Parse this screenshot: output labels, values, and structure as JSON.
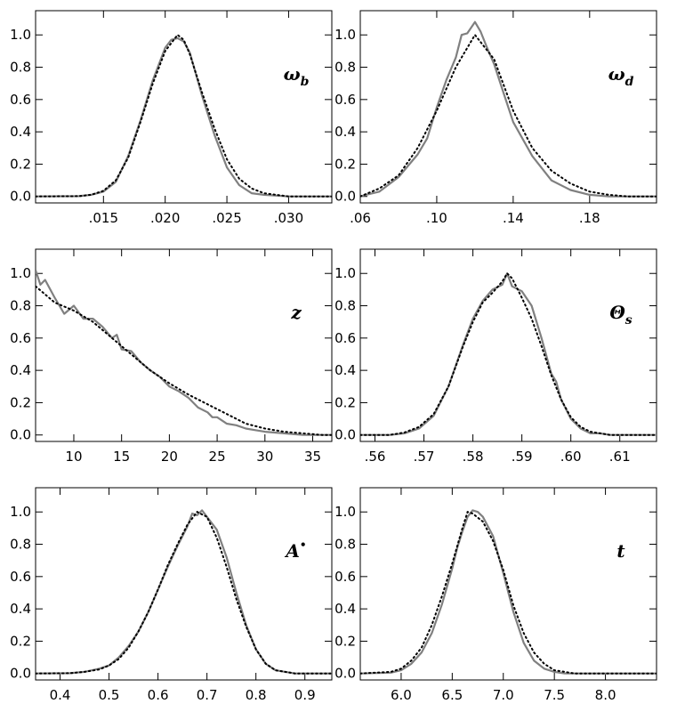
{
  "chart_data": [
    {
      "type": "line",
      "parameter_label": "ω",
      "parameter_subscript": "b",
      "xlim": [
        0.0095,
        0.0335
      ],
      "ylim": [
        -0.04,
        1.15
      ],
      "xticks": [
        0.015,
        0.02,
        0.025,
        0.03
      ],
      "xtick_labels": [
        ".015",
        ".020",
        ".025",
        ".030"
      ],
      "yticks": [
        0.0,
        0.2,
        0.4,
        0.6,
        0.8,
        1.0
      ],
      "ytick_labels": [
        "0.0",
        "0.2",
        "0.4",
        "0.6",
        "0.8",
        "1.0"
      ],
      "series": [
        {
          "style": "solid",
          "x": [
            0.0095,
            0.013,
            0.014,
            0.015,
            0.016,
            0.017,
            0.018,
            0.019,
            0.02,
            0.0205,
            0.021,
            0.0215,
            0.022,
            0.023,
            0.024,
            0.025,
            0.026,
            0.027,
            0.028,
            0.03,
            0.0335
          ],
          "y": [
            0,
            0.002,
            0.01,
            0.03,
            0.09,
            0.25,
            0.47,
            0.72,
            0.92,
            0.97,
            0.98,
            0.96,
            0.89,
            0.62,
            0.38,
            0.18,
            0.07,
            0.02,
            0.01,
            0,
            0
          ]
        },
        {
          "style": "dotted",
          "x": [
            0.0095,
            0.013,
            0.014,
            0.015,
            0.016,
            0.017,
            0.018,
            0.019,
            0.02,
            0.021,
            0.0215,
            0.022,
            0.023,
            0.024,
            0.025,
            0.026,
            0.027,
            0.028,
            0.029,
            0.03,
            0.0335
          ],
          "y": [
            0,
            0.002,
            0.01,
            0.035,
            0.1,
            0.24,
            0.46,
            0.7,
            0.9,
            1.0,
            0.97,
            0.88,
            0.64,
            0.42,
            0.23,
            0.11,
            0.05,
            0.02,
            0.01,
            0,
            0
          ]
        }
      ]
    },
    {
      "type": "line",
      "parameter_label": "ω",
      "parameter_subscript": "d",
      "xlim": [
        0.06,
        0.215
      ],
      "ylim": [
        -0.04,
        1.15
      ],
      "xticks": [
        0.06,
        0.1,
        0.14,
        0.18
      ],
      "xtick_labels": [
        ".06",
        ".10",
        ".14",
        ".18"
      ],
      "yticks": [
        0.0,
        0.2,
        0.4,
        0.6,
        0.8,
        1.0
      ],
      "ytick_labels": [
        "0.0",
        "0.2",
        "0.4",
        "0.6",
        "0.8",
        "1.0"
      ],
      "series": [
        {
          "style": "solid",
          "x": [
            0.06,
            0.063,
            0.07,
            0.08,
            0.09,
            0.095,
            0.1,
            0.105,
            0.11,
            0.113,
            0.116,
            0.12,
            0.123,
            0.126,
            0.13,
            0.135,
            0.14,
            0.15,
            0.16,
            0.17,
            0.18,
            0.19,
            0.2,
            0.215
          ],
          "y": [
            0,
            0.01,
            0.03,
            0.12,
            0.26,
            0.36,
            0.55,
            0.72,
            0.86,
            1.0,
            1.01,
            1.08,
            1.02,
            0.93,
            0.82,
            0.64,
            0.46,
            0.25,
            0.1,
            0.04,
            0.01,
            0,
            0,
            0
          ]
        },
        {
          "style": "dotted",
          "x": [
            0.06,
            0.07,
            0.08,
            0.09,
            0.1,
            0.11,
            0.12,
            0.13,
            0.14,
            0.15,
            0.16,
            0.17,
            0.18,
            0.19,
            0.2,
            0.215
          ],
          "y": [
            0,
            0.05,
            0.13,
            0.3,
            0.53,
            0.8,
            1.0,
            0.85,
            0.53,
            0.3,
            0.16,
            0.08,
            0.03,
            0.01,
            0,
            0
          ]
        }
      ]
    },
    {
      "type": "line",
      "parameter_label": "z",
      "parameter_subscript": "",
      "xlim": [
        6,
        37
      ],
      "ylim": [
        -0.04,
        1.15
      ],
      "xticks": [
        10,
        15,
        20,
        25,
        30,
        35
      ],
      "xtick_labels": [
        "10",
        "15",
        "20",
        "25",
        "30",
        "35"
      ],
      "yticks": [
        0.0,
        0.2,
        0.4,
        0.6,
        0.8,
        1.0
      ],
      "ytick_labels": [
        "0.0",
        "0.2",
        "0.4",
        "0.6",
        "0.8",
        "1.0"
      ],
      "series": [
        {
          "style": "solid",
          "x": [
            6,
            6.5,
            7,
            8,
            9,
            10,
            11,
            12,
            13,
            14,
            14.5,
            15,
            16,
            17,
            18,
            19,
            20,
            21,
            22,
            23,
            24,
            24.5,
            25,
            26,
            27,
            28,
            29,
            30,
            32,
            34,
            36,
            37
          ],
          "y": [
            1.02,
            0.93,
            0.96,
            0.85,
            0.75,
            0.8,
            0.72,
            0.72,
            0.67,
            0.6,
            0.62,
            0.53,
            0.52,
            0.45,
            0.4,
            0.36,
            0.3,
            0.27,
            0.23,
            0.17,
            0.14,
            0.11,
            0.11,
            0.07,
            0.06,
            0.04,
            0.03,
            0.02,
            0.01,
            0,
            0,
            0
          ]
        },
        {
          "style": "dotted",
          "x": [
            6,
            8,
            10,
            12,
            14,
            16,
            18,
            20,
            22,
            24,
            26,
            28,
            30,
            32,
            34,
            36,
            37
          ],
          "y": [
            0.92,
            0.82,
            0.77,
            0.7,
            0.6,
            0.5,
            0.4,
            0.32,
            0.25,
            0.19,
            0.13,
            0.07,
            0.04,
            0.02,
            0.01,
            0,
            0
          ]
        }
      ]
    },
    {
      "type": "line",
      "parameter_label": "Θ",
      "parameter_subscript": "s",
      "xlim": [
        0.557,
        0.6175
      ],
      "ylim": [
        -0.04,
        1.15
      ],
      "xticks": [
        0.56,
        0.57,
        0.58,
        0.59,
        0.6,
        0.61
      ],
      "xtick_labels": [
        ".56",
        ".57",
        ".58",
        ".59",
        ".60",
        ".61"
      ],
      "yticks": [
        0.0,
        0.2,
        0.4,
        0.6,
        0.8,
        1.0
      ],
      "ytick_labels": [
        "0.0",
        "0.2",
        "0.4",
        "0.6",
        "0.8",
        "1.0"
      ],
      "series": [
        {
          "style": "solid",
          "x": [
            0.557,
            0.563,
            0.566,
            0.569,
            0.572,
            0.575,
            0.578,
            0.58,
            0.582,
            0.584,
            0.586,
            0.587,
            0.588,
            0.59,
            0.592,
            0.594,
            0.596,
            0.597,
            0.598,
            0.6,
            0.602,
            0.604,
            0.606,
            0.608,
            0.61,
            0.6175
          ],
          "y": [
            0,
            0,
            0.01,
            0.04,
            0.12,
            0.3,
            0.56,
            0.72,
            0.83,
            0.9,
            0.93,
            1.0,
            0.92,
            0.89,
            0.8,
            0.6,
            0.38,
            0.33,
            0.22,
            0.1,
            0.04,
            0.01,
            0.01,
            0,
            0,
            0
          ]
        },
        {
          "style": "dotted",
          "x": [
            0.557,
            0.563,
            0.566,
            0.569,
            0.572,
            0.575,
            0.578,
            0.58,
            0.582,
            0.584,
            0.586,
            0.587,
            0.588,
            0.59,
            0.592,
            0.594,
            0.596,
            0.598,
            0.6,
            0.602,
            0.604,
            0.606,
            0.608,
            0.61,
            0.6175
          ],
          "y": [
            0,
            0,
            0.015,
            0.05,
            0.13,
            0.3,
            0.55,
            0.7,
            0.82,
            0.88,
            0.95,
            1.0,
            0.97,
            0.85,
            0.72,
            0.55,
            0.37,
            0.22,
            0.11,
            0.05,
            0.02,
            0.01,
            0,
            0,
            0
          ]
        }
      ]
    },
    {
      "type": "line",
      "parameter_label": "A",
      "parameter_subscript": "",
      "parameter_superscript": "•",
      "xlim": [
        0.35,
        0.955
      ],
      "ylim": [
        -0.04,
        1.15
      ],
      "xticks": [
        0.4,
        0.5,
        0.6,
        0.7,
        0.8,
        0.9
      ],
      "xtick_labels": [
        "0.4",
        "0.5",
        "0.6",
        "0.7",
        "0.8",
        "0.9"
      ],
      "yticks": [
        0.0,
        0.2,
        0.4,
        0.6,
        0.8,
        1.0
      ],
      "ytick_labels": [
        "0.0",
        "0.2",
        "0.4",
        "0.6",
        "0.8",
        "1.0"
      ],
      "series": [
        {
          "style": "solid",
          "x": [
            0.35,
            0.42,
            0.45,
            0.48,
            0.5,
            0.52,
            0.54,
            0.56,
            0.58,
            0.6,
            0.62,
            0.64,
            0.66,
            0.67,
            0.68,
            0.69,
            0.7,
            0.72,
            0.74,
            0.76,
            0.78,
            0.8,
            0.82,
            0.84,
            0.86,
            0.88,
            0.955
          ],
          "y": [
            0,
            0.002,
            0.01,
            0.03,
            0.05,
            0.1,
            0.17,
            0.26,
            0.38,
            0.52,
            0.66,
            0.79,
            0.91,
            0.99,
            0.98,
            1.01,
            0.97,
            0.89,
            0.72,
            0.5,
            0.3,
            0.15,
            0.06,
            0.02,
            0.01,
            0,
            0
          ]
        },
        {
          "style": "dotted",
          "x": [
            0.35,
            0.42,
            0.45,
            0.48,
            0.5,
            0.52,
            0.54,
            0.56,
            0.58,
            0.6,
            0.62,
            0.64,
            0.66,
            0.68,
            0.7,
            0.72,
            0.74,
            0.76,
            0.78,
            0.8,
            0.82,
            0.84,
            0.86,
            0.88,
            0.955
          ],
          "y": [
            0,
            0.002,
            0.01,
            0.025,
            0.05,
            0.09,
            0.16,
            0.26,
            0.38,
            0.52,
            0.67,
            0.8,
            0.92,
            1.0,
            0.97,
            0.84,
            0.66,
            0.46,
            0.29,
            0.15,
            0.06,
            0.02,
            0.01,
            0,
            0
          ]
        }
      ]
    },
    {
      "type": "line",
      "parameter_label": "t",
      "parameter_subscript": "",
      "xlim": [
        5.6,
        8.5
      ],
      "ylim": [
        -0.04,
        1.15
      ],
      "xticks": [
        6.0,
        6.5,
        7.0,
        7.5,
        8.0
      ],
      "xtick_labels": [
        "6.0",
        "6.5",
        "7.0",
        "7.5",
        "8.0"
      ],
      "yticks": [
        0.0,
        0.2,
        0.4,
        0.6,
        0.8,
        1.0
      ],
      "ytick_labels": [
        "0.0",
        "0.2",
        "0.4",
        "0.6",
        "0.8",
        "1.0"
      ],
      "series": [
        {
          "style": "solid",
          "x": [
            5.6,
            5.9,
            6.0,
            6.1,
            6.2,
            6.3,
            6.4,
            6.5,
            6.55,
            6.6,
            6.65,
            6.7,
            6.75,
            6.8,
            6.9,
            7.0,
            7.1,
            7.2,
            7.3,
            7.4,
            7.5,
            7.6,
            8.5
          ],
          "y": [
            0,
            0.005,
            0.02,
            0.06,
            0.13,
            0.25,
            0.43,
            0.65,
            0.78,
            0.88,
            0.97,
            1.01,
            1.0,
            0.97,
            0.85,
            0.62,
            0.38,
            0.19,
            0.08,
            0.03,
            0.01,
            0,
            0
          ]
        },
        {
          "style": "dotted",
          "x": [
            5.6,
            5.9,
            6.0,
            6.1,
            6.2,
            6.3,
            6.4,
            6.5,
            6.6,
            6.65,
            6.7,
            6.8,
            6.9,
            7.0,
            7.1,
            7.2,
            7.3,
            7.4,
            7.5,
            7.6,
            7.7,
            8.5
          ],
          "y": [
            0,
            0.01,
            0.03,
            0.08,
            0.16,
            0.3,
            0.48,
            0.68,
            0.9,
            1.0,
            0.99,
            0.94,
            0.82,
            0.64,
            0.42,
            0.25,
            0.13,
            0.06,
            0.02,
            0.01,
            0,
            0
          ]
        }
      ]
    }
  ]
}
